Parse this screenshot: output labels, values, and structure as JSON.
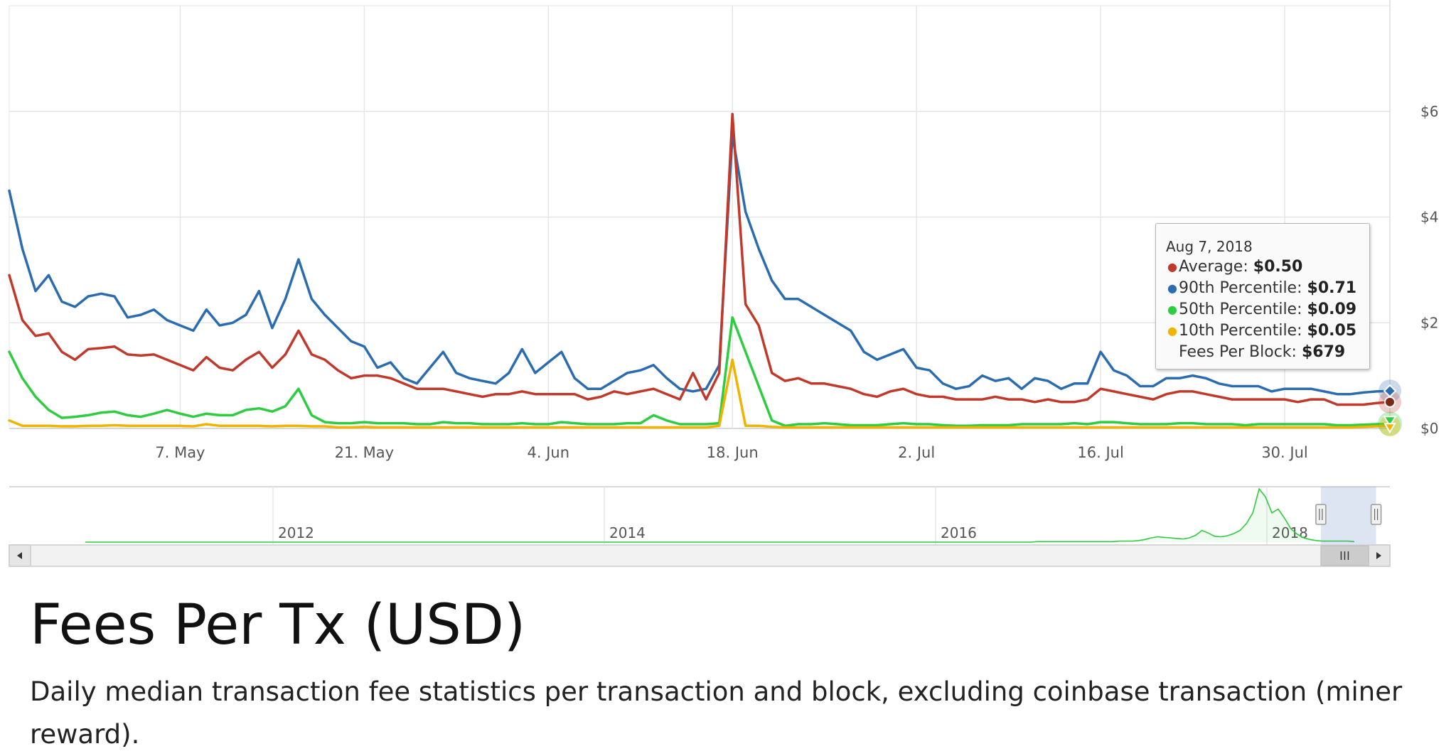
{
  "chart_data": {
    "type": "line",
    "x": [
      "Apr 24",
      "Apr 25",
      "Apr 26",
      "Apr 27",
      "Apr 28",
      "Apr 29",
      "Apr 30",
      "May 1",
      "May 2",
      "May 3",
      "May 4",
      "May 5",
      "May 6",
      "May 7",
      "May 8",
      "May 9",
      "May 10",
      "May 11",
      "May 12",
      "May 13",
      "May 14",
      "May 15",
      "May 16",
      "May 17",
      "May 18",
      "May 19",
      "May 20",
      "May 21",
      "May 22",
      "May 23",
      "May 24",
      "May 25",
      "May 26",
      "May 27",
      "May 28",
      "May 29",
      "May 30",
      "May 31",
      "Jun 1",
      "Jun 2",
      "Jun 3",
      "Jun 4",
      "Jun 5",
      "Jun 6",
      "Jun 7",
      "Jun 8",
      "Jun 9",
      "Jun 10",
      "Jun 11",
      "Jun 12",
      "Jun 13",
      "Jun 14",
      "Jun 15",
      "Jun 16",
      "Jun 17",
      "Jun 18",
      "Jun 19",
      "Jun 20",
      "Jun 21",
      "Jun 22",
      "Jun 23",
      "Jun 24",
      "Jun 25",
      "Jun 26",
      "Jun 27",
      "Jun 28",
      "Jun 29",
      "Jun 30",
      "Jul 1",
      "Jul 2",
      "Jul 3",
      "Jul 4",
      "Jul 5",
      "Jul 6",
      "Jul 7",
      "Jul 8",
      "Jul 9",
      "Jul 10",
      "Jul 11",
      "Jul 12",
      "Jul 13",
      "Jul 14",
      "Jul 15",
      "Jul 16",
      "Jul 17",
      "Jul 18",
      "Jul 19",
      "Jul 20",
      "Jul 21",
      "Jul 22",
      "Jul 23",
      "Jul 24",
      "Jul 25",
      "Jul 26",
      "Jul 27",
      "Jul 28",
      "Jul 29",
      "Jul 30",
      "Jul 31",
      "Aug 1",
      "Aug 2",
      "Aug 3",
      "Aug 4",
      "Aug 5",
      "Aug 6",
      "Aug 7"
    ],
    "series": [
      {
        "name": "90th Percentile",
        "color": "#2b6cb0",
        "values": [
          4.5,
          3.4,
          2.6,
          2.9,
          2.4,
          2.3,
          2.5,
          2.55,
          2.5,
          2.1,
          2.15,
          2.25,
          2.05,
          1.95,
          1.85,
          2.25,
          1.95,
          2.0,
          2.15,
          2.6,
          1.9,
          2.45,
          3.2,
          2.45,
          2.15,
          1.9,
          1.65,
          1.55,
          1.15,
          1.25,
          0.95,
          0.85,
          1.15,
          1.45,
          1.05,
          0.95,
          0.9,
          0.85,
          1.05,
          1.5,
          1.05,
          1.25,
          1.45,
          0.95,
          0.75,
          0.75,
          0.9,
          1.05,
          1.1,
          1.2,
          0.95,
          0.75,
          0.7,
          0.75,
          1.2,
          5.55,
          4.1,
          3.4,
          2.8,
          2.45,
          2.45,
          2.3,
          2.15,
          2.0,
          1.85,
          1.45,
          1.3,
          1.4,
          1.5,
          1.15,
          1.1,
          0.85,
          0.75,
          0.8,
          1.0,
          0.9,
          0.95,
          0.75,
          0.95,
          0.9,
          0.75,
          0.85,
          0.85,
          1.45,
          1.1,
          1.0,
          0.8,
          0.8,
          0.95,
          0.95,
          1.0,
          0.95,
          0.85,
          0.8,
          0.8,
          0.8,
          0.7,
          0.75,
          0.75,
          0.75,
          0.7,
          0.65,
          0.65,
          0.68,
          0.7,
          0.71
        ]
      },
      {
        "name": "Average",
        "color": "#c0392b",
        "values": [
          2.9,
          2.05,
          1.75,
          1.8,
          1.45,
          1.3,
          1.5,
          1.52,
          1.55,
          1.4,
          1.38,
          1.4,
          1.3,
          1.2,
          1.1,
          1.35,
          1.15,
          1.1,
          1.3,
          1.45,
          1.15,
          1.4,
          1.85,
          1.4,
          1.3,
          1.1,
          0.95,
          1.0,
          1.0,
          0.95,
          0.85,
          0.75,
          0.75,
          0.75,
          0.7,
          0.65,
          0.6,
          0.65,
          0.65,
          0.7,
          0.65,
          0.65,
          0.65,
          0.65,
          0.55,
          0.6,
          0.7,
          0.65,
          0.7,
          0.75,
          0.65,
          0.55,
          1.05,
          0.55,
          1.05,
          5.95,
          2.35,
          1.95,
          1.05,
          0.9,
          0.95,
          0.85,
          0.85,
          0.8,
          0.75,
          0.65,
          0.6,
          0.7,
          0.75,
          0.65,
          0.6,
          0.6,
          0.55,
          0.55,
          0.55,
          0.6,
          0.55,
          0.55,
          0.5,
          0.55,
          0.5,
          0.5,
          0.55,
          0.75,
          0.7,
          0.65,
          0.6,
          0.55,
          0.65,
          0.7,
          0.7,
          0.65,
          0.6,
          0.55,
          0.55,
          0.55,
          0.55,
          0.55,
          0.5,
          0.55,
          0.55,
          0.45,
          0.45,
          0.45,
          0.48,
          0.5
        ]
      },
      {
        "name": "50th Percentile",
        "color": "#2ecc40",
        "values": [
          1.45,
          0.95,
          0.6,
          0.35,
          0.2,
          0.22,
          0.25,
          0.3,
          0.32,
          0.25,
          0.22,
          0.28,
          0.35,
          0.28,
          0.22,
          0.28,
          0.25,
          0.25,
          0.35,
          0.38,
          0.32,
          0.42,
          0.75,
          0.25,
          0.12,
          0.1,
          0.1,
          0.12,
          0.1,
          0.1,
          0.1,
          0.08,
          0.08,
          0.12,
          0.1,
          0.1,
          0.08,
          0.08,
          0.08,
          0.1,
          0.08,
          0.08,
          0.12,
          0.1,
          0.08,
          0.08,
          0.08,
          0.1,
          0.1,
          0.25,
          0.15,
          0.08,
          0.08,
          0.08,
          0.1,
          2.1,
          1.45,
          0.8,
          0.15,
          0.05,
          0.08,
          0.08,
          0.1,
          0.08,
          0.06,
          0.06,
          0.06,
          0.08,
          0.1,
          0.08,
          0.08,
          0.06,
          0.05,
          0.05,
          0.06,
          0.06,
          0.06,
          0.08,
          0.08,
          0.08,
          0.08,
          0.1,
          0.08,
          0.12,
          0.12,
          0.1,
          0.08,
          0.08,
          0.08,
          0.1,
          0.1,
          0.08,
          0.08,
          0.08,
          0.06,
          0.08,
          0.08,
          0.08,
          0.08,
          0.08,
          0.08,
          0.06,
          0.06,
          0.07,
          0.08,
          0.09
        ]
      },
      {
        "name": "10th Percentile",
        "color": "#f0b400",
        "values": [
          0.15,
          0.05,
          0.05,
          0.05,
          0.04,
          0.04,
          0.05,
          0.05,
          0.06,
          0.05,
          0.05,
          0.05,
          0.05,
          0.05,
          0.04,
          0.08,
          0.05,
          0.05,
          0.05,
          0.05,
          0.04,
          0.05,
          0.05,
          0.04,
          0.04,
          0.02,
          0.02,
          0.03,
          0.02,
          0.02,
          0.02,
          0.02,
          0.02,
          0.02,
          0.02,
          0.02,
          0.02,
          0.02,
          0.02,
          0.02,
          0.02,
          0.02,
          0.02,
          0.02,
          0.02,
          0.02,
          0.02,
          0.02,
          0.02,
          0.02,
          0.02,
          0.02,
          0.02,
          0.02,
          0.05,
          1.3,
          0.05,
          0.05,
          0.03,
          0.02,
          0.02,
          0.02,
          0.02,
          0.02,
          0.02,
          0.02,
          0.02,
          0.02,
          0.02,
          0.02,
          0.02,
          0.02,
          0.02,
          0.02,
          0.02,
          0.02,
          0.02,
          0.02,
          0.02,
          0.02,
          0.02,
          0.02,
          0.02,
          0.02,
          0.02,
          0.02,
          0.02,
          0.02,
          0.02,
          0.02,
          0.02,
          0.02,
          0.02,
          0.02,
          0.02,
          0.02,
          0.02,
          0.02,
          0.02,
          0.02,
          0.02,
          0.02,
          0.02,
          0.03,
          0.04,
          0.05
        ]
      }
    ],
    "x_tick_labels": [
      "7. May",
      "21. May",
      "4. Jun",
      "18. Jun",
      "2. Jul",
      "16. Jul",
      "30. Jul"
    ],
    "x_tick_index": [
      13,
      27,
      41,
      55,
      69,
      83,
      97
    ],
    "y_tick_labels": [
      "$0",
      "$2",
      "$4",
      "$6"
    ],
    "y_tick_values": [
      0,
      2,
      4,
      6
    ],
    "ylim": [
      0,
      8
    ],
    "grid": true,
    "tooltip": {
      "date": "Aug 7, 2018",
      "rows": [
        {
          "label": "Average:",
          "value": "$0.50",
          "color": "#c0392b",
          "dot": true
        },
        {
          "label": "90th Percentile:",
          "value": "$0.71",
          "color": "#2b6cb0",
          "dot": true
        },
        {
          "label": "50th Percentile:",
          "value": "$0.09",
          "color": "#2ecc40",
          "dot": true
        },
        {
          "label": "10th Percentile:",
          "value": "$0.05",
          "color": "#f0b400",
          "dot": true
        },
        {
          "label": "Fees Per Block:",
          "value": "$679",
          "color": "",
          "dot": false
        }
      ]
    },
    "navigator": {
      "year_labels": [
        "2012",
        "2014",
        "2016",
        "2018"
      ],
      "series_color": "#2ecc40",
      "values": [
        0,
        0,
        0,
        0,
        0,
        0,
        0,
        0,
        0,
        0,
        0,
        0,
        0,
        0,
        0,
        0,
        0,
        0,
        0,
        0,
        0,
        0,
        0,
        0,
        0,
        0,
        0,
        0,
        0,
        0,
        0,
        0,
        0,
        0,
        0,
        0,
        0,
        0,
        0,
        0,
        0,
        0,
        0,
        0,
        0,
        0,
        0,
        0,
        0,
        0,
        0,
        0,
        0,
        0,
        0,
        0,
        0,
        0,
        0,
        0,
        0,
        0,
        0,
        0,
        0,
        0,
        0,
        0,
        0,
        0,
        0,
        0,
        0,
        0,
        0,
        0,
        0,
        0,
        0,
        0,
        0,
        0,
        0,
        0,
        0,
        0,
        0,
        0,
        0,
        0,
        0,
        0,
        0,
        0,
        0,
        0,
        0,
        0,
        0,
        0,
        0,
        0,
        0,
        0,
        0,
        0,
        0,
        0,
        0,
        0,
        0,
        0,
        0,
        0,
        0,
        0,
        0,
        0,
        0,
        0,
        0,
        0,
        0,
        0,
        0,
        0,
        0,
        0,
        0,
        0,
        0,
        0,
        0,
        0,
        0,
        0,
        0,
        0,
        0,
        0,
        0,
        0,
        0,
        0,
        0,
        0,
        0,
        0,
        0,
        0,
        0.01,
        0.01,
        0.01,
        0.01,
        0.01,
        0.01,
        0.01,
        0.01,
        0.01,
        0.01,
        0.01,
        0.01,
        0.01,
        0.02,
        0.02,
        0.02,
        0.03,
        0.05,
        0.08,
        0.1,
        0.09,
        0.08,
        0.07,
        0.06,
        0.08,
        0.13,
        0.22,
        0.17,
        0.11,
        0.1,
        0.12,
        0.16,
        0.22,
        0.35,
        0.55,
        1.0,
        0.85,
        0.55,
        0.62,
        0.45,
        0.25,
        0.15,
        0.08,
        0.05,
        0.03,
        0.02,
        0.02,
        0.02,
        0.02,
        0.02,
        0.01
      ],
      "selection_start": 0.95,
      "selection_end": 0.99
    }
  },
  "title": "Fees Per Tx (USD)",
  "description": "Daily median transaction fee statistics per transaction and block, excluding coinbase transaction (miner reward).",
  "tooltip_date": "Aug 7, 2018",
  "tooltip_rows": [
    {
      "label": "Average:",
      "value": "$0.50"
    },
    {
      "label": "90th Percentile:",
      "value": "$0.71"
    },
    {
      "label": "50th Percentile:",
      "value": "$0.09"
    },
    {
      "label": "10th Percentile:",
      "value": "$0.05"
    },
    {
      "label": "Fees Per Block:",
      "value": "$679"
    }
  ],
  "scrollbar": {
    "left_arrow_icon": "arrow-left-icon",
    "right_arrow_icon": "arrow-right-icon",
    "grip_icon": "scroll-grip-icon",
    "handle_icon": "navigator-handle-icon"
  }
}
